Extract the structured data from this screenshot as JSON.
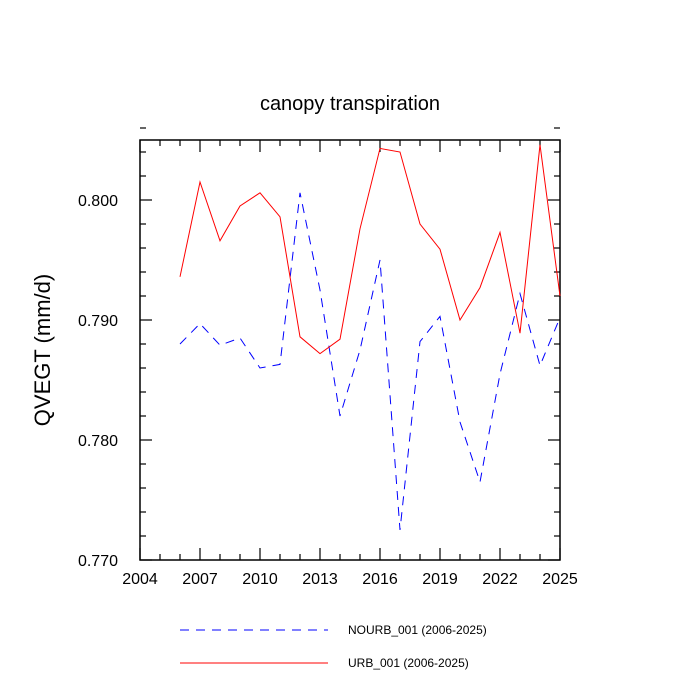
{
  "chart_data": {
    "type": "line",
    "title": "canopy transpiration",
    "xlabel": "",
    "ylabel": "QVEGT  (mm/d)",
    "xlim": [
      2004,
      2025
    ],
    "ylim": [
      0.77,
      0.805
    ],
    "x_ticks": [
      2004,
      2007,
      2010,
      2013,
      2016,
      2019,
      2022,
      2025
    ],
    "x_tick_labels": [
      "2004",
      "2007",
      "2010",
      "2013",
      "2016",
      "2019",
      "2022",
      "2025"
    ],
    "y_ticks": [
      0.77,
      0.78,
      0.79,
      0.8
    ],
    "y_tick_labels": [
      "0.770",
      "0.780",
      "0.790",
      "0.800"
    ],
    "x": [
      2006,
      2007,
      2008,
      2009,
      2010,
      2011,
      2012,
      2013,
      2014,
      2015,
      2016,
      2017,
      2018,
      2019,
      2020,
      2021,
      2022,
      2023,
      2024,
      2025
    ],
    "series": [
      {
        "name": "NOURB_001 (2006-2025)",
        "color": "#0000ff",
        "dash": true,
        "values": [
          0.788,
          0.7897,
          0.7879,
          0.7885,
          0.786,
          0.7863,
          0.8006,
          0.7925,
          0.782,
          0.7875,
          0.795,
          0.7725,
          0.7882,
          0.7903,
          0.7815,
          0.7765,
          0.7855,
          0.7922,
          0.7862,
          0.7902
        ]
      },
      {
        "name": "URB_001 (2006-2025)",
        "color": "#ff0000",
        "dash": false,
        "values": [
          0.7936,
          0.8015,
          0.7966,
          0.7995,
          0.8006,
          0.7986,
          0.7886,
          0.7872,
          0.7884,
          0.7976,
          0.8043,
          0.804,
          0.798,
          0.7959,
          0.79,
          0.7927,
          0.7973,
          0.7889,
          0.8046,
          0.792
        ]
      }
    ],
    "grid": false,
    "legend_position": "bottom"
  }
}
